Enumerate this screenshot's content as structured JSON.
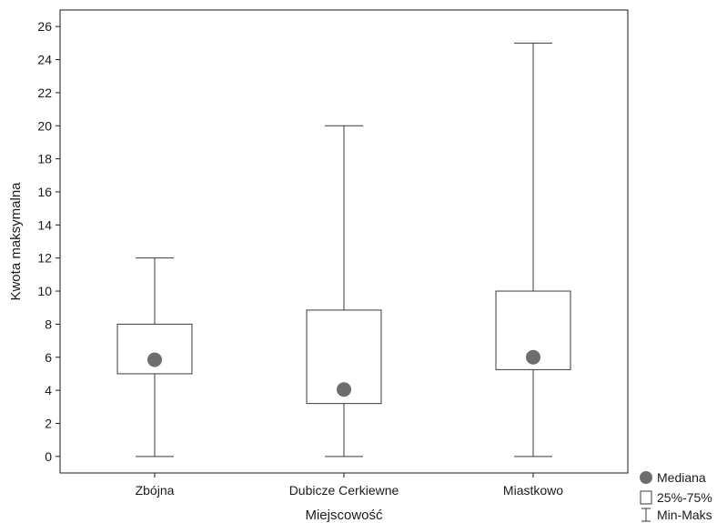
{
  "chart_data": {
    "type": "boxplot",
    "xlabel": "Miejscowość",
    "ylabel": "Kwota maksymalna",
    "ylim": [
      -1,
      27
    ],
    "yticks": [
      0,
      2,
      4,
      6,
      8,
      10,
      12,
      14,
      16,
      18,
      20,
      22,
      24,
      26
    ],
    "grid": false,
    "legend_position": "bottom-right",
    "categories": [
      "Zbójna",
      "Dubicze Cerkiewne",
      "Miastkowo"
    ],
    "boxes": [
      {
        "category": "Zbójna",
        "min": 0,
        "q1": 5,
        "median": 5.85,
        "q3": 8,
        "max": 12
      },
      {
        "category": "Dubicze Cerkiewne",
        "min": 0,
        "q1": 3.2,
        "median": 4.05,
        "q3": 8.85,
        "max": 20
      },
      {
        "category": "Miastkowo",
        "min": 0,
        "q1": 5.25,
        "median": 6,
        "q3": 10,
        "max": 25
      }
    ],
    "legend": [
      {
        "symbol": "circle",
        "label": "Mediana"
      },
      {
        "symbol": "box",
        "label": "25%-75%"
      },
      {
        "symbol": "whisker",
        "label": "Min-Maks"
      }
    ],
    "colors": {
      "median_marker": "#6e6e6e",
      "lines": "#3a3a3a",
      "axis": "#1a1a1a"
    }
  }
}
